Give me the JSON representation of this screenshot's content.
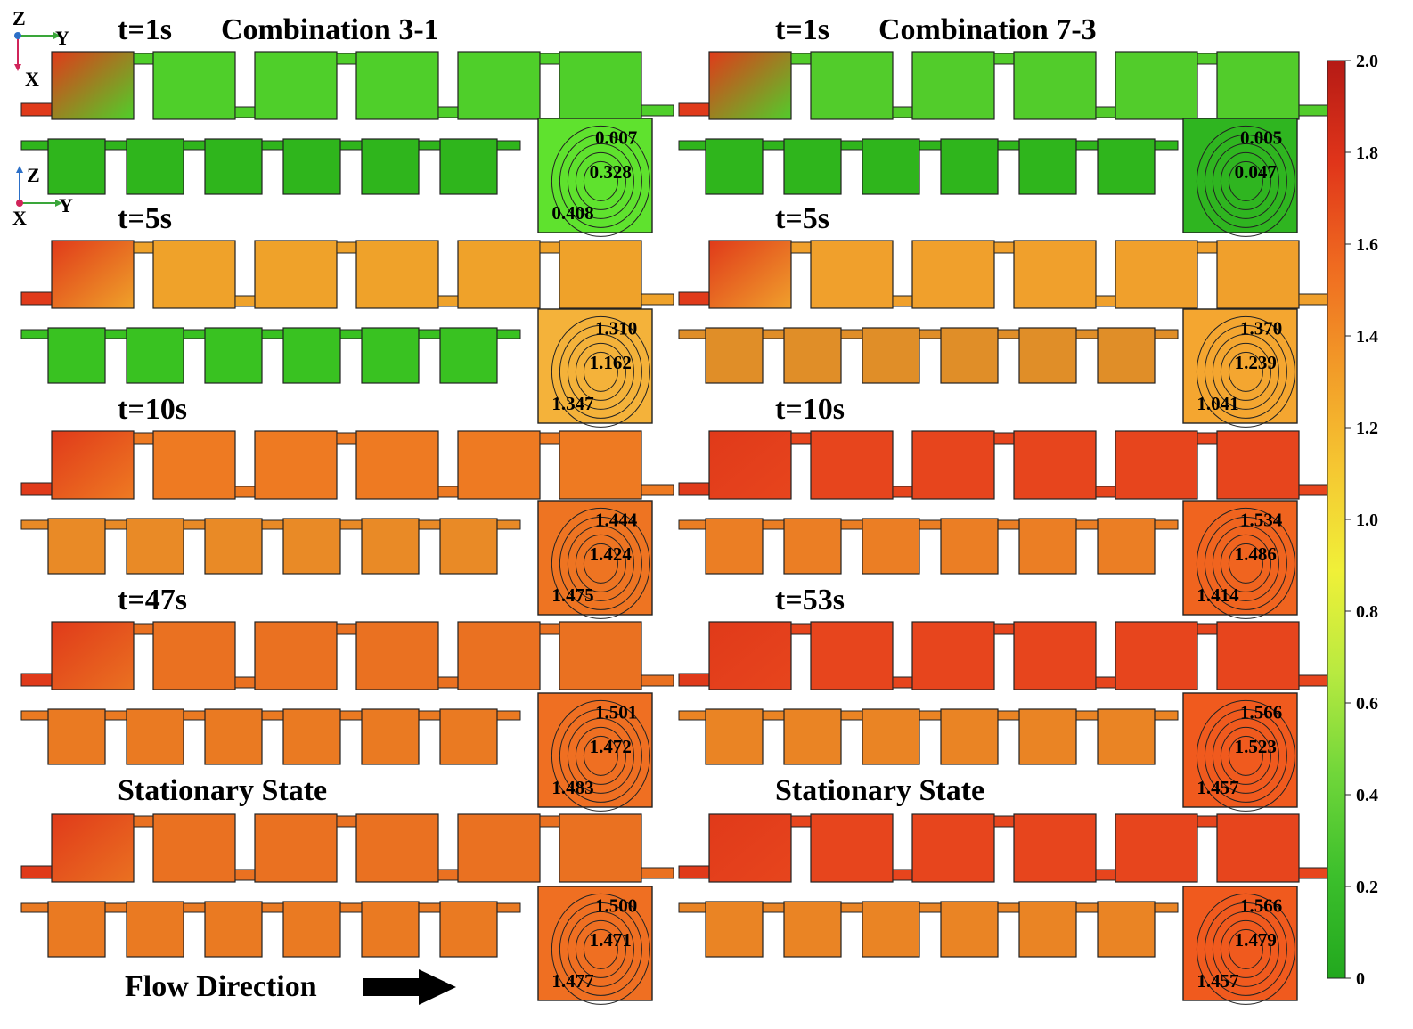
{
  "combinations": [
    {
      "title": "Combination 3-1",
      "times": [
        {
          "label": "t=1s",
          "main_color": "#4fcf2a",
          "lower_color": "#2fb51c",
          "cross": {
            "color": "#5fe22e",
            "labels": [
              "0.007",
              "0.328",
              "0.408"
            ]
          }
        },
        {
          "label": "t=5s",
          "main_color": "#efa22a",
          "lower_color": "#39c221",
          "cross": {
            "color": "#f4b23a",
            "labels": [
              "1.310",
              "1.162",
              "1.347"
            ]
          }
        },
        {
          "label": "t=10s",
          "main_color": "#ee7a22",
          "lower_color": "#e98a26",
          "cross": {
            "color": "#ee7422",
            "labels": [
              "1.444",
              "1.424",
              "1.475"
            ]
          }
        },
        {
          "label": "t=47s",
          "main_color": "#ea7121",
          "lower_color": "#ea7a22",
          "cross": {
            "color": "#ef6f22",
            "labels": [
              "1.501",
              "1.472",
              "1.483"
            ]
          }
        },
        {
          "label": "Stationary State",
          "main_color": "#ea7121",
          "lower_color": "#ea7a22",
          "cross": {
            "color": "#ef6f22",
            "labels": [
              "1.500",
              "1.471",
              "1.477"
            ]
          }
        }
      ]
    },
    {
      "title": "Combination 7-3",
      "times": [
        {
          "label": "t=1s",
          "main_color": "#52cc2b",
          "lower_color": "#2fb51c",
          "cross": {
            "color": "#2fb520",
            "labels": [
              "0.005",
              "0.047"
            ]
          }
        },
        {
          "label": "t=5s",
          "main_color": "#f0a02c",
          "lower_color": "#e08e28",
          "cross": {
            "color": "#f4a630",
            "labels": [
              "1.370",
              "1.239",
              "1.041"
            ]
          }
        },
        {
          "label": "t=10s",
          "main_color": "#e7451d",
          "lower_color": "#eb7e24",
          "cross": {
            "color": "#f0641f",
            "labels": [
              "1.534",
              "1.486",
              "1.414"
            ]
          }
        },
        {
          "label": "t=53s",
          "main_color": "#e7451d",
          "lower_color": "#ea8424",
          "cross": {
            "color": "#f05a1e",
            "labels": [
              "1.566",
              "1.523",
              "1.457"
            ]
          }
        },
        {
          "label": "Stationary State",
          "main_color": "#e7451d",
          "lower_color": "#ea8424",
          "cross": {
            "color": "#f05a1e",
            "labels": [
              "1.566",
              "1.479",
              "1.457"
            ]
          }
        }
      ]
    }
  ],
  "axes": {
    "top": {
      "z": "Z",
      "y": "Y",
      "x": "X"
    },
    "side": {
      "z": "Z",
      "y": "Y",
      "x": "X"
    }
  },
  "colorbar": {
    "ticks": [
      "2.0",
      "1.8",
      "1.6",
      "1.4",
      "1.2",
      "1.0",
      "0.8",
      "0.6",
      "0.4",
      "0.2",
      "0"
    ],
    "colors": [
      "#b51a15",
      "#e0351a",
      "#ef6a20",
      "#f29a28",
      "#f5c732",
      "#f0f038",
      "#b8ea40",
      "#70d63a",
      "#3cbf2c",
      "#22a81e"
    ]
  },
  "flow_direction": "Flow Direction",
  "colors": {
    "wall": "#222222",
    "inlet_hot": "#e03a1a",
    "inlet_warm": "#eec32e"
  }
}
